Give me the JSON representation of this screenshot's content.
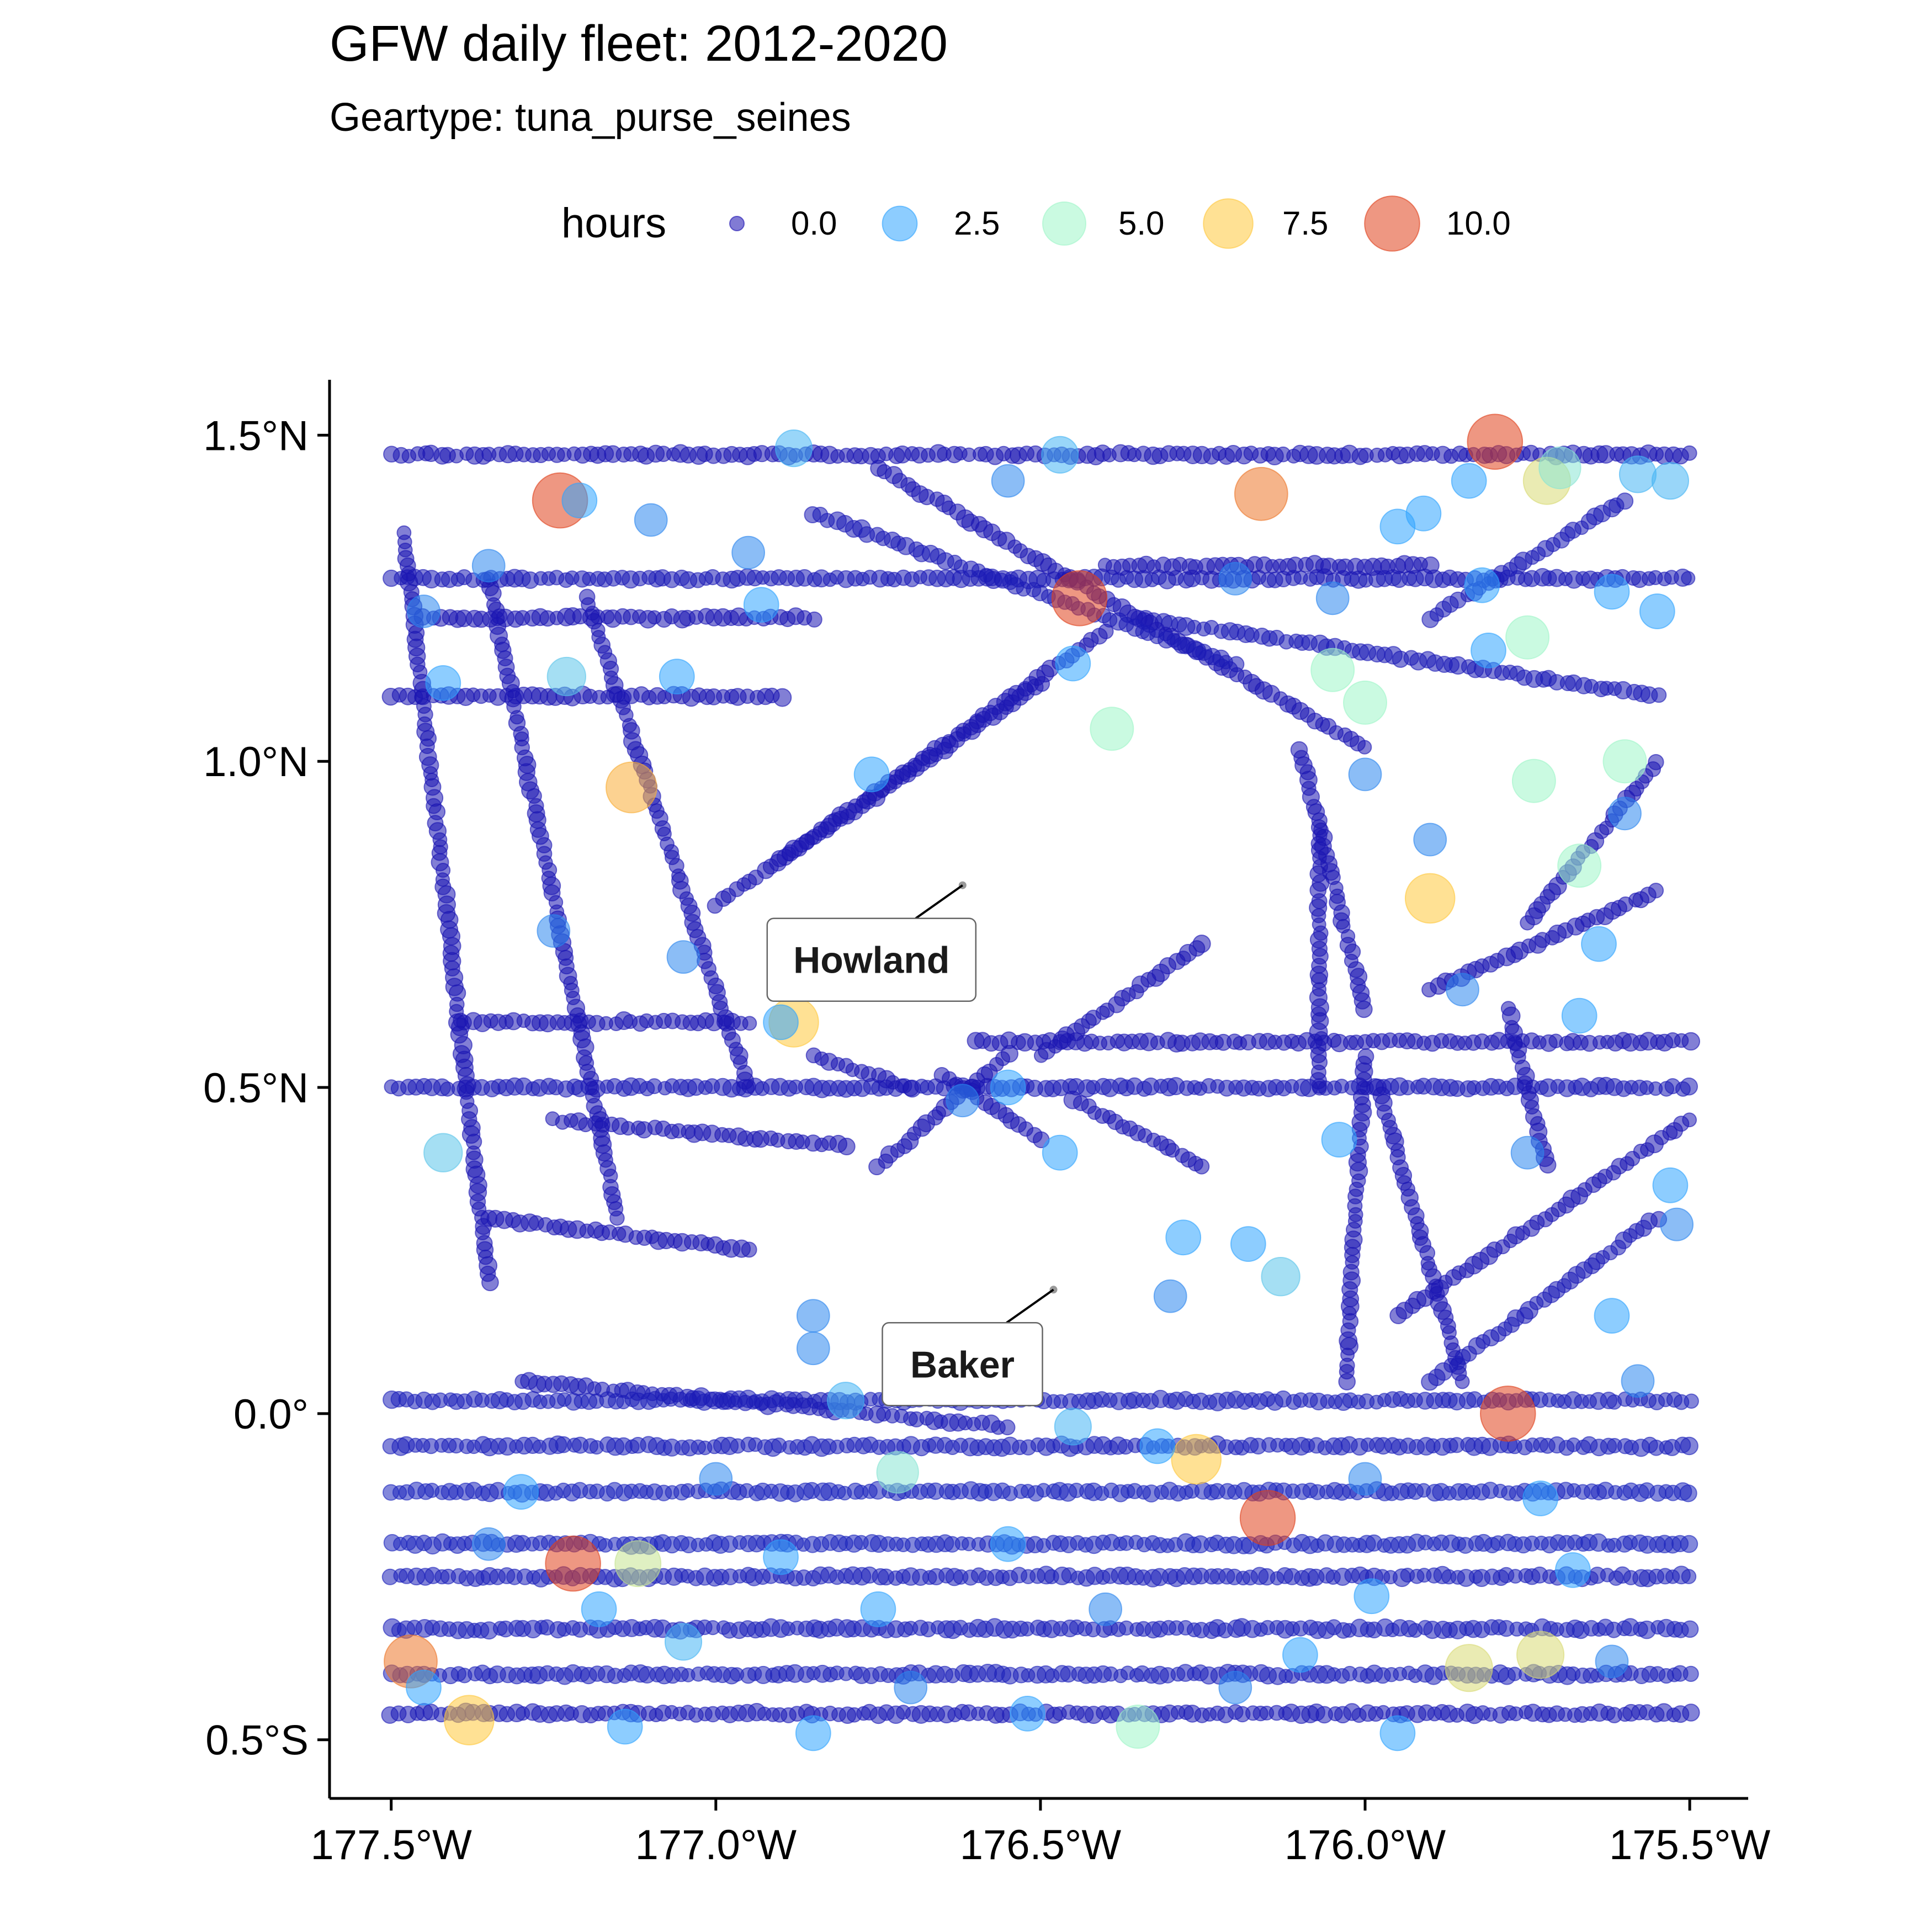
{
  "chart_data": {
    "type": "scatter",
    "title": "GFW daily fleet: 2012-2020",
    "subtitle": "Geartype: tuna_purse_seines",
    "xlabel": "",
    "ylabel": "",
    "xlim": [
      -177.595,
      -175.41
    ],
    "ylim": [
      -0.59,
      1.585
    ],
    "x_ticks": [
      {
        "value": -177.5,
        "label": "177.5°W"
      },
      {
        "value": -177.0,
        "label": "177.0°W"
      },
      {
        "value": -176.5,
        "label": "176.5°W"
      },
      {
        "value": -176.0,
        "label": "176.0°W"
      },
      {
        "value": -175.5,
        "label": "175.5°W"
      }
    ],
    "y_ticks": [
      {
        "value": 1.5,
        "label": "1.5°N"
      },
      {
        "value": 1.0,
        "label": "1.0°N"
      },
      {
        "value": 0.5,
        "label": "0.5°N"
      },
      {
        "value": 0.0,
        "label": "0.0°"
      },
      {
        "value": -0.5,
        "label": "0.5°S"
      }
    ],
    "grid": false,
    "legend": {
      "title": "hours",
      "position": "top",
      "items": [
        {
          "value": 0.0,
          "label": "0.0",
          "color": "#1a0fb0"
        },
        {
          "value": 2.5,
          "label": "2.5",
          "color": "#2fa4ff"
        },
        {
          "value": 5.0,
          "label": "5.0",
          "color": "#9ef5c8"
        },
        {
          "value": 7.5,
          "label": "7.5",
          "color": "#ffc83d"
        },
        {
          "value": 10.0,
          "label": "10.0",
          "color": "#e0411c"
        }
      ]
    },
    "color_scale": {
      "min": 0,
      "max": 10,
      "colors": [
        "#1a0fb0",
        "#2fa4ff",
        "#9ef5c8",
        "#ffc83d",
        "#e0411c"
      ]
    },
    "annotations": [
      {
        "label": "Howland",
        "lon": -176.62,
        "lat": 0.81
      },
      {
        "label": "Baker",
        "lon": -176.48,
        "lat": 0.19
      }
    ],
    "tracks": [
      {
        "from": [
          -177.5,
          1.47
        ],
        "to": [
          -175.5,
          1.47
        ],
        "hours": 0.1
      },
      {
        "from": [
          -177.5,
          1.28
        ],
        "to": [
          -175.5,
          1.28
        ],
        "hours": 0.2
      },
      {
        "from": [
          -177.45,
          1.22
        ],
        "to": [
          -176.85,
          1.22
        ],
        "hours": 0.1
      },
      {
        "from": [
          -177.5,
          1.1
        ],
        "to": [
          -176.9,
          1.1
        ],
        "hours": 0.1
      },
      {
        "from": [
          -176.4,
          1.3
        ],
        "to": [
          -175.9,
          1.3
        ],
        "hours": 0.1
      },
      {
        "from": [
          -176.35,
          1.22
        ],
        "to": [
          -175.55,
          1.1
        ],
        "hours": 0.2
      },
      {
        "from": [
          -177.4,
          0.6
        ],
        "to": [
          -176.95,
          0.6
        ],
        "hours": 0.1
      },
      {
        "from": [
          -177.5,
          0.5
        ],
        "to": [
          -175.5,
          0.5
        ],
        "hours": 0.2
      },
      {
        "from": [
          -176.6,
          0.57
        ],
        "to": [
          -175.5,
          0.57
        ],
        "hours": 0.1
      },
      {
        "from": [
          -177.5,
          0.02
        ],
        "to": [
          -175.5,
          0.02
        ],
        "hours": 0.3
      },
      {
        "from": [
          -177.5,
          -0.05
        ],
        "to": [
          -175.5,
          -0.05
        ],
        "hours": 0.3
      },
      {
        "from": [
          -177.5,
          -0.12
        ],
        "to": [
          -175.5,
          -0.12
        ],
        "hours": 0.4
      },
      {
        "from": [
          -177.5,
          -0.2
        ],
        "to": [
          -175.5,
          -0.2
        ],
        "hours": 0.4
      },
      {
        "from": [
          -177.5,
          -0.25
        ],
        "to": [
          -175.5,
          -0.25
        ],
        "hours": 0.3
      },
      {
        "from": [
          -177.5,
          -0.33
        ],
        "to": [
          -175.5,
          -0.33
        ],
        "hours": 0.3
      },
      {
        "from": [
          -177.5,
          -0.4
        ],
        "to": [
          -175.5,
          -0.4
        ],
        "hours": 0.3
      },
      {
        "from": [
          -177.5,
          -0.46
        ],
        "to": [
          -175.5,
          -0.46
        ],
        "hours": 0.2
      },
      {
        "from": [
          -177.3,
          0.05
        ],
        "to": [
          -176.55,
          -0.02
        ],
        "hours": 0.2
      },
      {
        "from": [
          -177.48,
          1.35
        ],
        "to": [
          -177.35,
          0.2
        ],
        "hours": 0.1
      },
      {
        "from": [
          -177.35,
          1.28
        ],
        "to": [
          -177.15,
          0.3
        ],
        "hours": 0.1
      },
      {
        "from": [
          -177.2,
          1.25
        ],
        "to": [
          -176.95,
          0.5
        ],
        "hours": 0.1
      },
      {
        "from": [
          -176.9,
          0.85
        ],
        "to": [
          -176.4,
          1.2
        ],
        "hours": 0.1
      },
      {
        "from": [
          -177.0,
          0.78
        ],
        "to": [
          -176.5,
          1.12
        ],
        "hours": 0.1
      },
      {
        "from": [
          -176.75,
          1.45
        ],
        "to": [
          -176.0,
          1.02
        ],
        "hours": 0.1
      },
      {
        "from": [
          -176.1,
          1.02
        ],
        "to": [
          -176.0,
          0.62
        ],
        "hours": 0.1
      },
      {
        "from": [
          -176.07,
          0.9
        ],
        "to": [
          -176.07,
          0.5
        ],
        "hours": 0.1
      },
      {
        "from": [
          -175.98,
          0.5
        ],
        "to": [
          -175.85,
          0.05
        ],
        "hours": 0.1
      },
      {
        "from": [
          -176.0,
          0.55
        ],
        "to": [
          -176.03,
          0.05
        ],
        "hours": 0.1
      },
      {
        "from": [
          -175.9,
          0.05
        ],
        "to": [
          -175.55,
          0.3
        ],
        "hours": 0.2
      },
      {
        "from": [
          -175.95,
          0.15
        ],
        "to": [
          -175.5,
          0.45
        ],
        "hours": 0.1
      },
      {
        "from": [
          -175.55,
          0.8
        ],
        "to": [
          -175.9,
          0.65
        ],
        "hours": 0.1
      },
      {
        "from": [
          -175.78,
          0.62
        ],
        "to": [
          -175.72,
          0.38
        ],
        "hours": 0.1
      },
      {
        "from": [
          -176.65,
          0.52
        ],
        "to": [
          -176.5,
          0.42
        ],
        "hours": 0.1
      },
      {
        "from": [
          -176.75,
          0.38
        ],
        "to": [
          -176.55,
          0.55
        ],
        "hours": 0.1
      },
      {
        "from": [
          -176.85,
          0.55
        ],
        "to": [
          -176.7,
          0.5
        ],
        "hours": 0.1
      },
      {
        "from": [
          -176.5,
          0.55
        ],
        "to": [
          -176.25,
          0.72
        ],
        "hours": 0.1
      },
      {
        "from": [
          -176.45,
          0.48
        ],
        "to": [
          -176.25,
          0.38
        ],
        "hours": 0.1
      },
      {
        "from": [
          -177.25,
          0.45
        ],
        "to": [
          -176.8,
          0.41
        ],
        "hours": 0.1
      },
      {
        "from": [
          -177.35,
          0.3
        ],
        "to": [
          -176.95,
          0.25
        ],
        "hours": 0.1
      },
      {
        "from": [
          -175.6,
          1.4
        ],
        "to": [
          -175.9,
          1.22
        ],
        "hours": 0.2
      },
      {
        "from": [
          -175.55,
          1.0
        ],
        "to": [
          -175.75,
          0.75
        ],
        "hours": 0.1
      },
      {
        "from": [
          -176.85,
          1.38
        ],
        "to": [
          -176.2,
          1.15
        ],
        "hours": 0.2
      }
    ],
    "points": [
      {
        "x": -177.24,
        "y": 1.4,
        "hours": 10.0
      },
      {
        "x": -177.21,
        "y": 1.4,
        "hours": 2.5
      },
      {
        "x": -176.44,
        "y": 1.25,
        "hours": 10.0
      },
      {
        "x": -175.8,
        "y": 1.49,
        "hours": 10.0
      },
      {
        "x": -176.16,
        "y": 1.41,
        "hours": 9.0
      },
      {
        "x": -175.78,
        "y": 0.0,
        "hours": 10.0
      },
      {
        "x": -176.15,
        "y": -0.16,
        "hours": 10.0
      },
      {
        "x": -177.22,
        "y": -0.23,
        "hours": 10.0
      },
      {
        "x": -177.47,
        "y": -0.38,
        "hours": 9.0
      },
      {
        "x": -177.13,
        "y": 0.96,
        "hours": 8.0
      },
      {
        "x": -175.9,
        "y": 0.79,
        "hours": 7.5
      },
      {
        "x": -176.88,
        "y": 0.6,
        "hours": 7.5
      },
      {
        "x": -176.26,
        "y": -0.07,
        "hours": 7.5
      },
      {
        "x": -177.38,
        "y": -0.47,
        "hours": 7.5
      },
      {
        "x": -175.84,
        "y": -0.39,
        "hours": 6.5
      },
      {
        "x": -175.72,
        "y": 1.43,
        "hours": 6.5
      },
      {
        "x": -175.73,
        "y": -0.37,
        "hours": 6.5
      },
      {
        "x": -177.12,
        "y": -0.23,
        "hours": 6.0
      },
      {
        "x": -175.75,
        "y": 1.19,
        "hours": 5.0
      },
      {
        "x": -175.74,
        "y": 0.97,
        "hours": 5.0
      },
      {
        "x": -175.6,
        "y": 1.0,
        "hours": 5.0
      },
      {
        "x": -175.67,
        "y": 0.84,
        "hours": 5.0
      },
      {
        "x": -176.39,
        "y": 1.05,
        "hours": 5.0
      },
      {
        "x": -176.0,
        "y": 1.09,
        "hours": 5.0
      },
      {
        "x": -176.05,
        "y": 1.14,
        "hours": 5.0
      },
      {
        "x": -176.35,
        "y": -0.48,
        "hours": 5.0
      },
      {
        "x": -175.7,
        "y": 1.45,
        "hours": 4.5
      },
      {
        "x": -176.72,
        "y": -0.09,
        "hours": 4.5
      },
      {
        "x": -176.13,
        "y": 0.21,
        "hours": 3.5
      },
      {
        "x": -177.42,
        "y": 0.4,
        "hours": 3.5
      },
      {
        "x": -177.23,
        "y": 1.13,
        "hours": 3.5
      },
      {
        "x": -176.47,
        "y": 1.47,
        "hours": 3.0
      },
      {
        "x": -176.88,
        "y": 1.48,
        "hours": 3.0
      },
      {
        "x": -175.58,
        "y": 1.44,
        "hours": 3.0
      },
      {
        "x": -175.53,
        "y": 1.43,
        "hours": 3.0
      },
      {
        "x": -176.45,
        "y": -0.02,
        "hours": 3.0
      },
      {
        "x": -176.8,
        "y": 0.02,
        "hours": 3.0
      },
      {
        "x": -177.05,
        "y": -0.35,
        "hours": 3.0
      },
      {
        "x": -176.9,
        "y": 0.6,
        "hours": 2.5
      },
      {
        "x": -176.45,
        "y": 1.15,
        "hours": 2.5
      },
      {
        "x": -175.81,
        "y": 1.17,
        "hours": 2.5
      },
      {
        "x": -175.53,
        "y": 0.35,
        "hours": 2.5
      },
      {
        "x": -177.42,
        "y": 1.12,
        "hours": 2.5
      },
      {
        "x": -176.76,
        "y": 0.98,
        "hours": 2.5
      },
      {
        "x": -177.06,
        "y": 1.13,
        "hours": 2.5
      },
      {
        "x": -176.93,
        "y": 1.24,
        "hours": 2.5
      },
      {
        "x": -176.55,
        "y": 0.5,
        "hours": 2.5
      },
      {
        "x": -176.47,
        "y": 0.4,
        "hours": 2.5
      },
      {
        "x": -176.04,
        "y": 0.42,
        "hours": 2.5
      },
      {
        "x": -176.18,
        "y": 0.26,
        "hours": 2.5
      },
      {
        "x": -176.28,
        "y": 0.27,
        "hours": 2.5
      },
      {
        "x": -175.91,
        "y": 1.38,
        "hours": 2.5
      },
      {
        "x": -175.84,
        "y": 1.43,
        "hours": 2.5
      },
      {
        "x": -175.62,
        "y": 1.26,
        "hours": 2.5
      },
      {
        "x": -175.55,
        "y": 1.23,
        "hours": 2.5
      },
      {
        "x": -175.82,
        "y": 1.27,
        "hours": 2.5
      },
      {
        "x": -175.95,
        "y": 1.36,
        "hours": 2.5
      },
      {
        "x": -175.67,
        "y": 0.61,
        "hours": 2.5
      },
      {
        "x": -175.64,
        "y": 0.72,
        "hours": 2.5
      },
      {
        "x": -175.62,
        "y": 0.15,
        "hours": 2.5
      },
      {
        "x": -175.73,
        "y": -0.13,
        "hours": 2.5
      },
      {
        "x": -175.68,
        "y": -0.24,
        "hours": 2.5
      },
      {
        "x": -175.99,
        "y": -0.28,
        "hours": 2.5
      },
      {
        "x": -176.32,
        "y": -0.05,
        "hours": 2.5
      },
      {
        "x": -176.55,
        "y": -0.2,
        "hours": 2.5
      },
      {
        "x": -176.75,
        "y": -0.3,
        "hours": 2.5
      },
      {
        "x": -176.9,
        "y": -0.22,
        "hours": 2.5
      },
      {
        "x": -177.18,
        "y": -0.3,
        "hours": 2.5
      },
      {
        "x": -177.3,
        "y": -0.12,
        "hours": 2.5
      },
      {
        "x": -177.45,
        "y": -0.42,
        "hours": 2.5
      },
      {
        "x": -177.14,
        "y": -0.48,
        "hours": 2.5
      },
      {
        "x": -176.85,
        "y": -0.49,
        "hours": 2.5
      },
      {
        "x": -176.52,
        "y": -0.46,
        "hours": 2.5
      },
      {
        "x": -176.1,
        "y": -0.37,
        "hours": 2.5
      },
      {
        "x": -175.95,
        "y": -0.49,
        "hours": 2.5
      },
      {
        "x": -176.85,
        "y": 0.1,
        "hours": 2.0
      },
      {
        "x": -176.85,
        "y": 0.15,
        "hours": 2.0
      },
      {
        "x": -177.05,
        "y": 0.7,
        "hours": 2.0
      },
      {
        "x": -177.25,
        "y": 0.74,
        "hours": 2.0
      },
      {
        "x": -176.3,
        "y": 0.18,
        "hours": 2.0
      },
      {
        "x": -175.52,
        "y": 0.29,
        "hours": 2.0
      },
      {
        "x": -175.6,
        "y": 0.92,
        "hours": 2.0
      },
      {
        "x": -175.9,
        "y": 0.88,
        "hours": 2.0
      },
      {
        "x": -176.62,
        "y": 0.48,
        "hours": 2.0
      },
      {
        "x": -176.95,
        "y": 1.32,
        "hours": 2.0
      },
      {
        "x": -177.1,
        "y": 1.37,
        "hours": 2.0
      },
      {
        "x": -177.35,
        "y": 1.3,
        "hours": 2.0
      },
      {
        "x": -177.45,
        "y": 1.23,
        "hours": 2.0
      },
      {
        "x": -176.55,
        "y": 1.43,
        "hours": 2.0
      },
      {
        "x": -176.2,
        "y": 1.28,
        "hours": 2.0
      },
      {
        "x": -176.05,
        "y": 1.25,
        "hours": 2.0
      },
      {
        "x": -176.0,
        "y": 0.98,
        "hours": 2.0
      },
      {
        "x": -175.85,
        "y": 0.65,
        "hours": 2.0
      },
      {
        "x": -175.75,
        "y": 0.4,
        "hours": 2.0
      },
      {
        "x": -175.58,
        "y": 0.05,
        "hours": 2.0
      },
      {
        "x": -176.0,
        "y": -0.1,
        "hours": 2.0
      },
      {
        "x": -176.4,
        "y": -0.3,
        "hours": 2.0
      },
      {
        "x": -176.7,
        "y": -0.42,
        "hours": 2.0
      },
      {
        "x": -177.0,
        "y": -0.1,
        "hours": 2.0
      },
      {
        "x": -177.35,
        "y": -0.2,
        "hours": 2.0
      },
      {
        "x": -175.62,
        "y": -0.38,
        "hours": 2.0
      },
      {
        "x": -176.2,
        "y": -0.42,
        "hours": 2.0
      }
    ]
  }
}
